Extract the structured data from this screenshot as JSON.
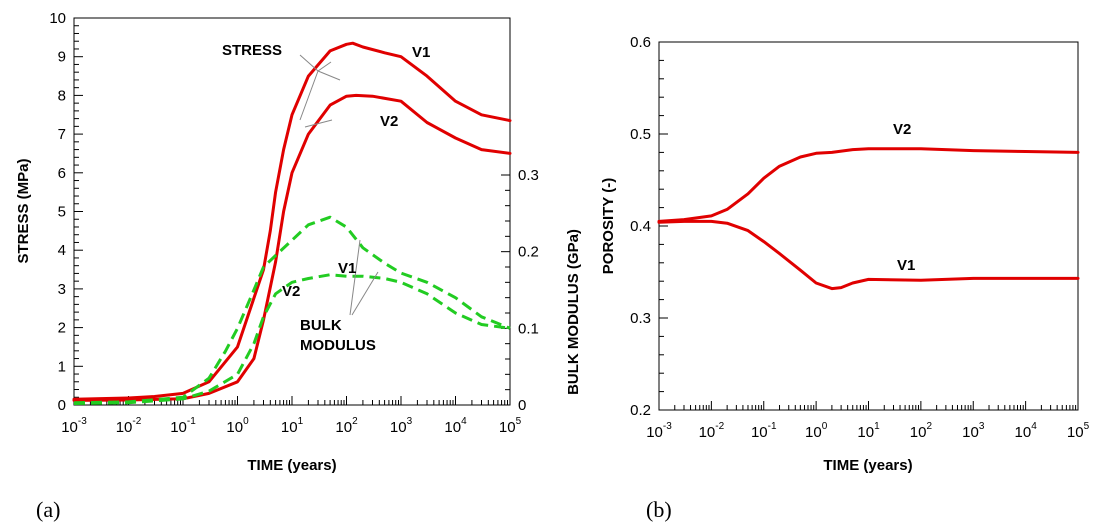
{
  "chart_data": [
    {
      "panel_label": "(a)",
      "type": "line",
      "x_scale": "log",
      "xlabel": "TIME (years)",
      "ylabel": "STRESS (MPa)",
      "y2label": "BULK MODULUS (GPa)",
      "xlim": [
        0.001,
        100000
      ],
      "ylim": [
        0,
        10
      ],
      "y2lim": [
        0,
        0.3
      ],
      "x_tick_exponents": [
        "-3",
        "-2",
        "-1",
        "0",
        "1",
        "2",
        "3",
        "4",
        "5"
      ],
      "y_ticks": [
        "0",
        "1",
        "2",
        "3",
        "4",
        "5",
        "6",
        "7",
        "8",
        "9",
        "10"
      ],
      "y2_ticks": [
        "0",
        "0.1",
        "0.2",
        "0.3"
      ],
      "series": [
        {
          "name": "V1",
          "axis": "stress",
          "color": "#e00000",
          "style": "solid",
          "x": [
            0.001,
            0.01,
            0.03,
            0.1,
            0.3,
            1,
            3,
            4,
            5,
            7,
            10,
            20,
            50,
            100,
            130,
            200,
            500,
            1000,
            3000,
            10000,
            30000,
            100000
          ],
          "y": [
            0.15,
            0.18,
            0.22,
            0.3,
            0.6,
            1.5,
            3.5,
            4.5,
            5.5,
            6.6,
            7.5,
            8.5,
            9.15,
            9.32,
            9.35,
            9.25,
            9.1,
            9.0,
            8.5,
            7.85,
            7.5,
            7.35
          ]
        },
        {
          "name": "V2",
          "axis": "stress",
          "color": "#e00000",
          "style": "solid",
          "x": [
            0.001,
            0.01,
            0.1,
            0.3,
            1,
            2,
            3,
            5,
            7,
            10,
            20,
            50,
            100,
            150,
            300,
            1000,
            3000,
            10000,
            30000,
            100000
          ],
          "y": [
            0.12,
            0.13,
            0.16,
            0.3,
            0.6,
            1.2,
            2.2,
            3.7,
            5.0,
            6.0,
            7.0,
            7.75,
            7.98,
            8.0,
            7.98,
            7.85,
            7.3,
            6.9,
            6.6,
            6.5
          ]
        },
        {
          "name": "V1",
          "axis": "bulk_modulus",
          "color": "#22cc22",
          "style": "dashed",
          "x": [
            0.001,
            0.01,
            0.1,
            0.3,
            0.6,
            1,
            2,
            3,
            5,
            10,
            20,
            50,
            100,
            200,
            500,
            1000,
            3000,
            10000,
            30000,
            100000
          ],
          "y": [
            0.003,
            0.004,
            0.01,
            0.035,
            0.07,
            0.1,
            0.15,
            0.18,
            0.195,
            0.215,
            0.235,
            0.245,
            0.232,
            0.205,
            0.185,
            0.172,
            0.16,
            0.14,
            0.115,
            0.1
          ]
        },
        {
          "name": "V2",
          "axis": "bulk_modulus",
          "color": "#22cc22",
          "style": "dashed",
          "x": [
            0.001,
            0.01,
            0.1,
            0.3,
            1,
            2,
            3,
            5,
            10,
            20,
            50,
            100,
            200,
            500,
            1000,
            3000,
            10000,
            30000,
            100000
          ],
          "y": [
            0.002,
            0.003,
            0.008,
            0.018,
            0.04,
            0.08,
            0.115,
            0.145,
            0.16,
            0.165,
            0.17,
            0.168,
            0.168,
            0.165,
            0.16,
            0.145,
            0.12,
            0.105,
            0.1
          ]
        }
      ],
      "annotations": [
        "STRESS",
        "V1",
        "V2",
        "V1",
        "V2",
        "BULK",
        "MODULUS"
      ]
    },
    {
      "panel_label": "(b)",
      "type": "line",
      "x_scale": "log",
      "xlabel": "TIME (years)",
      "ylabel": "POROSITY (-)",
      "xlim": [
        0.001,
        100000
      ],
      "ylim": [
        0.2,
        0.6
      ],
      "x_tick_exponents": [
        "-3",
        "-2",
        "-1",
        "0",
        "1",
        "2",
        "3",
        "4",
        "5"
      ],
      "y_ticks": [
        "0.2",
        "0.3",
        "0.4",
        "0.5",
        "0.6"
      ],
      "series": [
        {
          "name": "V2",
          "color": "#e00000",
          "x": [
            0.001,
            0.003,
            0.01,
            0.02,
            0.05,
            0.1,
            0.2,
            0.5,
            1,
            2,
            5,
            10,
            100,
            1000,
            10000,
            100000
          ],
          "y": [
            0.405,
            0.407,
            0.411,
            0.418,
            0.435,
            0.452,
            0.465,
            0.475,
            0.479,
            0.48,
            0.483,
            0.484,
            0.484,
            0.482,
            0.481,
            0.48
          ]
        },
        {
          "name": "V1",
          "color": "#e00000",
          "x": [
            0.001,
            0.003,
            0.01,
            0.02,
            0.05,
            0.1,
            0.2,
            0.5,
            1,
            2,
            3,
            5,
            10,
            100,
            1000,
            10000,
            100000
          ],
          "y": [
            0.404,
            0.405,
            0.405,
            0.403,
            0.395,
            0.383,
            0.37,
            0.352,
            0.338,
            0.332,
            0.333,
            0.338,
            0.342,
            0.341,
            0.343,
            0.343,
            0.343
          ]
        }
      ],
      "annotations": [
        "V2",
        "V1"
      ]
    }
  ]
}
